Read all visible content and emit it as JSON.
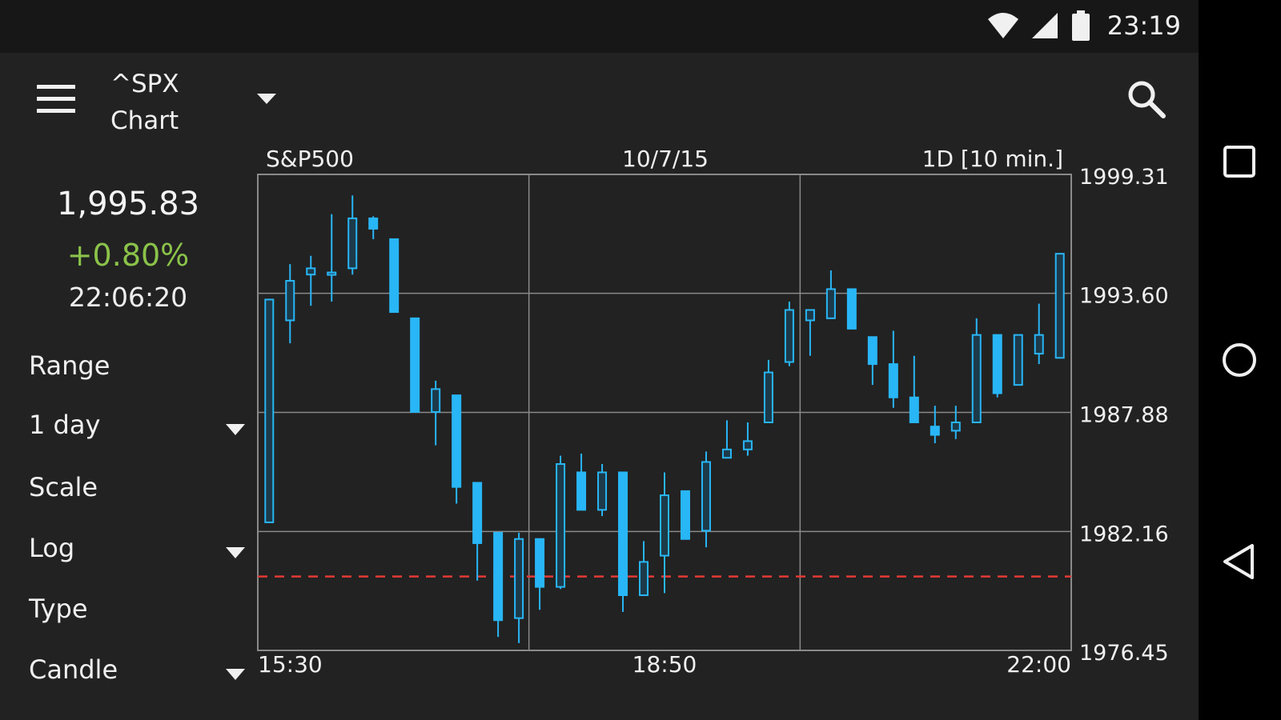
{
  "status_bar": {
    "time": "23:19",
    "icons": [
      "wifi-icon",
      "signal-icon",
      "battery-icon"
    ]
  },
  "app_bar": {
    "symbol": "^SPX",
    "subtitle": "Chart",
    "icons": [
      "menu-icon",
      "dropdown-caret-icon",
      "search-icon"
    ]
  },
  "quote": {
    "price": "1,995.83",
    "change": "+0.80%",
    "time": "22:06:20"
  },
  "controls": {
    "range_label": "Range",
    "range_value": "1 day",
    "scale_label": "Scale",
    "scale_value": "Log",
    "type_label": "Type",
    "type_value": "Candle"
  },
  "nav_bar": {
    "icons": [
      "recents-square-icon",
      "home-circle-icon",
      "back-triangle-icon"
    ]
  },
  "colors": {
    "background": "#222222",
    "candle": "#29b6f6",
    "positive": "#8bc34a",
    "reference_line": "#e53935",
    "grid": "#8a8a8a"
  },
  "chart_data": {
    "type": "candlestick",
    "header_left": "S&P500",
    "header_center": "10/7/15",
    "header_right": "1D [10 min.]",
    "y_ticks": [
      "1999.31",
      "1993.60",
      "1987.88",
      "1982.16",
      "1976.45"
    ],
    "ylim": [
      1976.45,
      1999.31
    ],
    "x_ticks": [
      "15:30",
      "18:50",
      "22:00"
    ],
    "reference_line": 1980.0,
    "candles": [
      {
        "o": 1982.6,
        "h": 1993.3,
        "l": 1982.6,
        "c": 1993.3
      },
      {
        "o": 1992.3,
        "h": 1995.0,
        "l": 1991.2,
        "c": 1994.2
      },
      {
        "o": 1994.5,
        "h": 1995.4,
        "l": 1993.0,
        "c": 1994.8
      },
      {
        "o": 1994.6,
        "h": 1997.4,
        "l": 1993.2,
        "c": 1994.6
      },
      {
        "o": 1994.8,
        "h": 1998.3,
        "l": 1994.5,
        "c": 1997.2
      },
      {
        "o": 1997.2,
        "h": 1997.3,
        "l": 1996.2,
        "c": 1996.7
      },
      {
        "o": 1996.2,
        "h": 1996.2,
        "l": 1992.7,
        "c": 1992.7
      },
      {
        "o": 1992.4,
        "h": 1992.4,
        "l": 1987.9,
        "c": 1987.9
      },
      {
        "o": 1987.9,
        "h": 1989.4,
        "l": 1986.3,
        "c": 1989.0
      },
      {
        "o": 1988.7,
        "h": 1988.7,
        "l": 1983.5,
        "c": 1984.3
      },
      {
        "o": 1984.5,
        "h": 1984.5,
        "l": 1979.8,
        "c": 1981.6
      },
      {
        "o": 1982.1,
        "h": 1982.1,
        "l": 1977.1,
        "c": 1977.9
      },
      {
        "o": 1978.0,
        "h": 1982.1,
        "l": 1976.8,
        "c": 1981.8
      },
      {
        "o": 1981.8,
        "h": 1981.8,
        "l": 1978.4,
        "c": 1979.5
      },
      {
        "o": 1979.5,
        "h": 1985.8,
        "l": 1979.4,
        "c": 1985.4
      },
      {
        "o": 1985.0,
        "h": 1985.9,
        "l": 1983.2,
        "c": 1983.2
      },
      {
        "o": 1983.2,
        "h": 1985.4,
        "l": 1982.9,
        "c": 1985.0
      },
      {
        "o": 1985.0,
        "h": 1985.0,
        "l": 1978.3,
        "c": 1979.1
      },
      {
        "o": 1979.1,
        "h": 1981.7,
        "l": 1979.1,
        "c": 1980.7
      },
      {
        "o": 1981.0,
        "h": 1985.0,
        "l": 1979.2,
        "c": 1983.9
      },
      {
        "o": 1984.1,
        "h": 1984.1,
        "l": 1981.8,
        "c": 1981.8
      },
      {
        "o": 1982.2,
        "h": 1986.0,
        "l": 1981.4,
        "c": 1985.5
      },
      {
        "o": 1985.7,
        "h": 1987.5,
        "l": 1985.7,
        "c": 1986.1
      },
      {
        "o": 1986.1,
        "h": 1987.4,
        "l": 1985.8,
        "c": 1986.5
      },
      {
        "o": 1987.4,
        "h": 1990.4,
        "l": 1987.4,
        "c": 1989.8
      },
      {
        "o": 1990.3,
        "h": 1993.2,
        "l": 1990.1,
        "c": 1992.8
      },
      {
        "o": 1992.3,
        "h": 1992.8,
        "l": 1990.6,
        "c": 1992.8
      },
      {
        "o": 1992.4,
        "h": 1994.7,
        "l": 1992.4,
        "c": 1993.8
      },
      {
        "o": 1993.8,
        "h": 1993.8,
        "l": 1991.9,
        "c": 1991.9
      },
      {
        "o": 1991.5,
        "h": 1991.5,
        "l": 1989.2,
        "c": 1990.2
      },
      {
        "o": 1990.2,
        "h": 1991.8,
        "l": 1988.1,
        "c": 1988.6
      },
      {
        "o": 1988.6,
        "h": 1990.6,
        "l": 1987.4,
        "c": 1987.4
      },
      {
        "o": 1987.2,
        "h": 1988.2,
        "l": 1986.4,
        "c": 1986.8
      },
      {
        "o": 1987.0,
        "h": 1988.2,
        "l": 1986.6,
        "c": 1987.4
      },
      {
        "o": 1987.4,
        "h": 1992.4,
        "l": 1987.4,
        "c": 1991.6
      },
      {
        "o": 1991.6,
        "h": 1991.6,
        "l": 1988.6,
        "c": 1988.8
      },
      {
        "o": 1989.2,
        "h": 1991.6,
        "l": 1989.2,
        "c": 1991.6
      },
      {
        "o": 1990.7,
        "h": 1993.1,
        "l": 1990.2,
        "c": 1991.6
      },
      {
        "o": 1990.5,
        "h": 1995.5,
        "l": 1990.5,
        "c": 1995.5
      }
    ]
  }
}
